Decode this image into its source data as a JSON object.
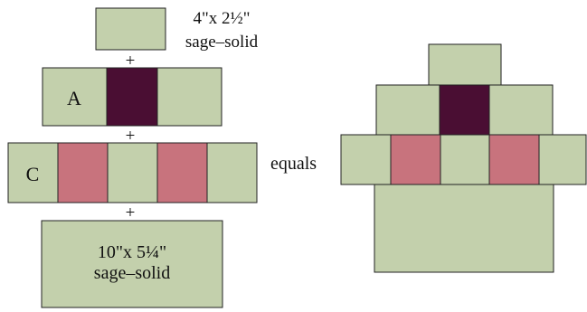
{
  "colors": {
    "sage": "#c3d0ac",
    "plum": "#4a0e33",
    "rose": "#c8737d",
    "outline": "#222222",
    "background": "#ffffff"
  },
  "left_assembly": {
    "top_piece": {
      "size_label": "4\"x 2½\"",
      "fabric_label": "sage–solid"
    },
    "plus_1": "+",
    "row_a": {
      "label": "A",
      "cells": [
        "sage",
        "plum",
        "sage"
      ]
    },
    "plus_2": "+",
    "row_c": {
      "label": "C",
      "cells": [
        "sage",
        "rose",
        "sage",
        "rose",
        "sage"
      ]
    },
    "plus_3": "+",
    "bottom_piece": {
      "size_label": "10\"x 5¼\"",
      "fabric_label": "sage–solid"
    }
  },
  "equals_label": "equals",
  "result_block": {
    "row_top": [
      "sage"
    ],
    "row_a": [
      "sage",
      "plum",
      "sage"
    ],
    "row_c": [
      "sage",
      "rose",
      "sage",
      "rose",
      "sage"
    ],
    "row_bottom": [
      "sage"
    ]
  }
}
